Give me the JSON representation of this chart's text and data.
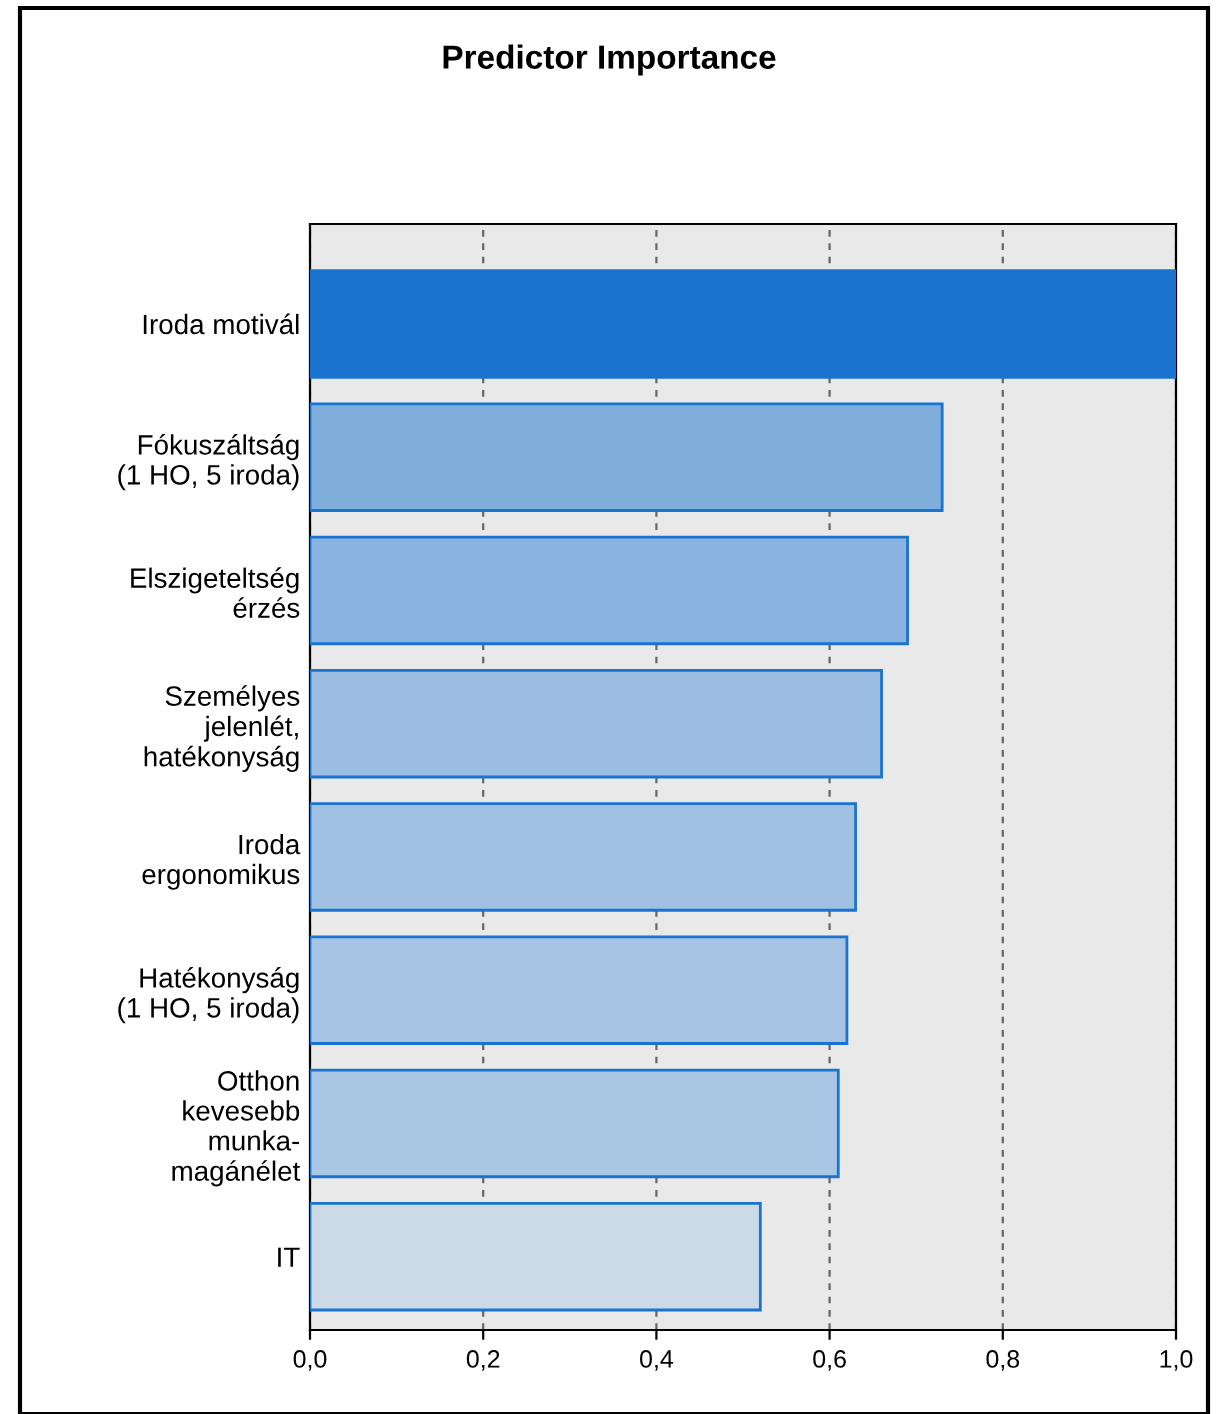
{
  "chart_data": {
    "type": "bar",
    "orientation": "horizontal",
    "title": "Predictor Importance",
    "categories": [
      "Iroda motivál",
      "Fókuszáltság\n(1 HO, 5 iroda)",
      "Elszigeteltség\nérzés",
      "Személyes\njelenlét,\nhatékonyság",
      "Iroda\nergonomikus",
      "Hatékonyság\n(1 HO, 5 iroda)",
      "Otthon\nkevesebb\nmunka-\nmagánélet",
      "IT"
    ],
    "values": [
      1.0,
      0.73,
      0.69,
      0.66,
      0.63,
      0.62,
      0.61,
      0.52
    ],
    "colors": [
      "#1a73cf",
      "#80aedb",
      "#8ab4df",
      "#9bbde2",
      "#a0c0e2",
      "#a8c4e4",
      "#aac6e5",
      "#ccdae7"
    ],
    "xlim": [
      0,
      1
    ],
    "xticks": [
      {
        "value": 0,
        "label": "0,0"
      },
      {
        "value": 0.2,
        "label": "0,2"
      },
      {
        "value": 0.4,
        "label": "0,4"
      },
      {
        "value": 0.6,
        "label": "0,6"
      },
      {
        "value": 0.8,
        "label": "0,8"
      },
      {
        "value": 1,
        "label": "1,0"
      }
    ],
    "grid": "x"
  }
}
